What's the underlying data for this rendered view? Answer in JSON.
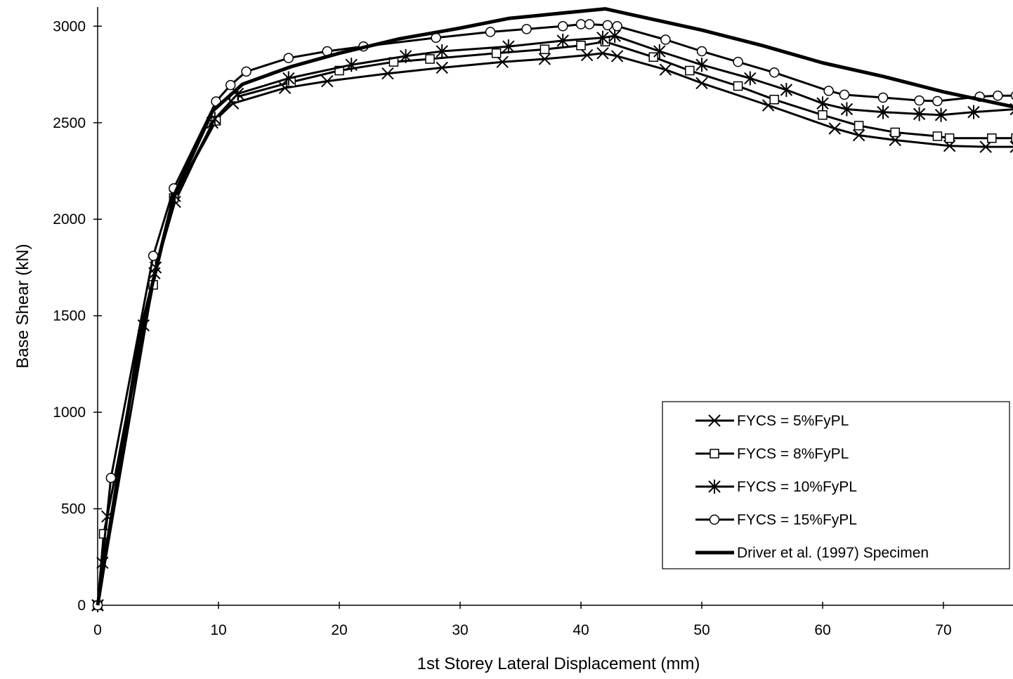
{
  "chart_data": {
    "type": "line",
    "title": "",
    "xlabel": "1st Storey Lateral Displacement (mm)",
    "ylabel": "Base Shear (kN)",
    "xlim": [
      0,
      76
    ],
    "ylim": [
      0,
      3050
    ],
    "x_ticks": [
      0,
      10,
      20,
      30,
      40,
      50,
      60,
      70
    ],
    "y_ticks": [
      0,
      500,
      1000,
      1500,
      2000,
      2500,
      3000
    ],
    "x_tick_labels": [
      "0",
      "10",
      "20",
      "30",
      "40",
      "50",
      "60",
      "70"
    ],
    "y_tick_labels": [
      "0",
      "500",
      "1000",
      "1500",
      "2000",
      "2500",
      "3000"
    ],
    "grid": false,
    "legend_position": "bottom-right",
    "line_color": "#000000",
    "series": [
      {
        "name": "FYCS = 5%FyPL",
        "marker": "x",
        "points": [
          [
            0,
            0
          ],
          [
            0.4,
            220
          ],
          [
            0.8,
            460
          ],
          [
            3.8,
            1450
          ],
          [
            4.7,
            1720
          ],
          [
            6.4,
            2090
          ],
          [
            9.5,
            2500
          ],
          [
            11.2,
            2600
          ],
          [
            15.5,
            2680
          ],
          [
            19,
            2715
          ],
          [
            24,
            2755
          ],
          [
            28.5,
            2785
          ],
          [
            33.5,
            2815
          ],
          [
            37,
            2830
          ],
          [
            40.5,
            2850
          ],
          [
            41.8,
            2860
          ],
          [
            43,
            2845
          ],
          [
            47,
            2775
          ],
          [
            50,
            2705
          ],
          [
            55.5,
            2590
          ],
          [
            61,
            2470
          ],
          [
            63,
            2435
          ],
          [
            66,
            2410
          ],
          [
            70.5,
            2380
          ],
          [
            73.5,
            2375
          ],
          [
            76,
            2375
          ]
        ]
      },
      {
        "name": "FYCS = 8%FyPL",
        "marker": "square",
        "points": [
          [
            0,
            0
          ],
          [
            0.5,
            370
          ],
          [
            4.6,
            1660
          ],
          [
            6.3,
            2110
          ],
          [
            9.8,
            2510
          ],
          [
            11.3,
            2630
          ],
          [
            16,
            2710
          ],
          [
            20,
            2770
          ],
          [
            24.5,
            2815
          ],
          [
            27.5,
            2830
          ],
          [
            33,
            2860
          ],
          [
            37,
            2880
          ],
          [
            40,
            2900
          ],
          [
            42,
            2920
          ],
          [
            46,
            2840
          ],
          [
            49,
            2770
          ],
          [
            53,
            2690
          ],
          [
            56,
            2620
          ],
          [
            60,
            2540
          ],
          [
            63,
            2485
          ],
          [
            66,
            2450
          ],
          [
            69.5,
            2430
          ],
          [
            70.5,
            2420
          ],
          [
            74,
            2420
          ],
          [
            76,
            2420
          ]
        ]
      },
      {
        "name": "FYCS = 10%FyPL",
        "marker": "asterisk",
        "points": [
          [
            0,
            0
          ],
          [
            4.8,
            1750
          ],
          [
            6.4,
            2120
          ],
          [
            9.7,
            2520
          ],
          [
            11.6,
            2650
          ],
          [
            15.8,
            2730
          ],
          [
            21,
            2800
          ],
          [
            25.5,
            2845
          ],
          [
            28.5,
            2870
          ],
          [
            34,
            2895
          ],
          [
            38.5,
            2925
          ],
          [
            41.8,
            2940
          ],
          [
            42.8,
            2950
          ],
          [
            46.5,
            2870
          ],
          [
            50,
            2800
          ],
          [
            54,
            2730
          ],
          [
            57,
            2670
          ],
          [
            60,
            2600
          ],
          [
            62,
            2570
          ],
          [
            65,
            2555
          ],
          [
            68,
            2545
          ],
          [
            69.8,
            2540
          ],
          [
            72.5,
            2555
          ],
          [
            76,
            2570
          ]
        ]
      },
      {
        "name": "FYCS = 15%FyPL",
        "marker": "circle",
        "points": [
          [
            0,
            0
          ],
          [
            1.1,
            660
          ],
          [
            4.6,
            1810
          ],
          [
            6.3,
            2160
          ],
          [
            9.8,
            2610
          ],
          [
            11,
            2695
          ],
          [
            12.3,
            2765
          ],
          [
            15.8,
            2835
          ],
          [
            19,
            2870
          ],
          [
            22,
            2895
          ],
          [
            28,
            2940
          ],
          [
            32.5,
            2970
          ],
          [
            35.5,
            2985
          ],
          [
            38.5,
            3000
          ],
          [
            40,
            3010
          ],
          [
            40.7,
            3010
          ],
          [
            42.2,
            3005
          ],
          [
            43,
            3000
          ],
          [
            47,
            2930
          ],
          [
            50,
            2870
          ],
          [
            53,
            2815
          ],
          [
            56,
            2760
          ],
          [
            60.5,
            2665
          ],
          [
            61.8,
            2645
          ],
          [
            65,
            2630
          ],
          [
            68,
            2615
          ],
          [
            69.5,
            2612
          ],
          [
            73,
            2635
          ],
          [
            74.5,
            2640
          ],
          [
            76,
            2640
          ]
        ]
      },
      {
        "name": "Driver et al. (1997) Specimen",
        "marker": "none",
        "points": [
          [
            0,
            0
          ],
          [
            3.5,
            1400
          ],
          [
            6.3,
            2120
          ],
          [
            9.5,
            2560
          ],
          [
            12,
            2700
          ],
          [
            16,
            2790
          ],
          [
            20,
            2860
          ],
          [
            25,
            2935
          ],
          [
            30,
            2990
          ],
          [
            34,
            3040
          ],
          [
            38,
            3065
          ],
          [
            42,
            3090
          ],
          [
            50,
            2980
          ],
          [
            55,
            2900
          ],
          [
            60,
            2810
          ],
          [
            65,
            2740
          ],
          [
            70,
            2660
          ],
          [
            76,
            2580
          ]
        ]
      }
    ]
  }
}
